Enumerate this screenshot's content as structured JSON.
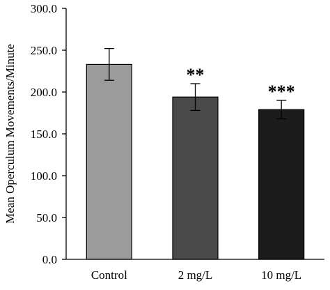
{
  "chart_data": {
    "type": "bar",
    "title": "",
    "xlabel": "",
    "ylabel": "Mean Operculum Movements/Minute",
    "categories": [
      "Control",
      "2 mg/L",
      "10 mg/L"
    ],
    "values": [
      233,
      194,
      179
    ],
    "errors": [
      19,
      16,
      11
    ],
    "significance": [
      "",
      "**",
      "***"
    ],
    "ylim": [
      0.0,
      300.0
    ],
    "yticks": [
      0.0,
      50.0,
      100.0,
      150.0,
      200.0,
      250.0,
      300.0
    ],
    "ytick_labels": [
      "0.0",
      "50.0",
      "100.0",
      "150.0",
      "200.0",
      "250.0",
      "300.0"
    ],
    "bar_colors": [
      "#9b9b9b",
      "#4a4a4a",
      "#1c1c1c"
    ],
    "grid": false,
    "legend": "none"
  }
}
